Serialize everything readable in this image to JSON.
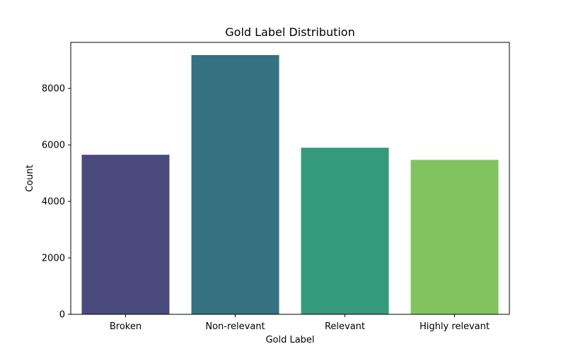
{
  "chart_data": {
    "type": "bar",
    "title": "Gold Label Distribution",
    "xlabel": "Gold Label",
    "ylabel": "Count",
    "categories": [
      "Broken",
      "Non-relevant",
      "Relevant",
      "Highly relevant"
    ],
    "values": [
      5650,
      9180,
      5900,
      5470
    ],
    "colors": [
      "#4a4a7f",
      "#357180",
      "#349a7b",
      "#81c45f"
    ],
    "ylim": [
      0,
      9630
    ],
    "yticks": [
      0,
      2000,
      4000,
      6000,
      8000
    ],
    "grid": false,
    "legend": "none"
  }
}
